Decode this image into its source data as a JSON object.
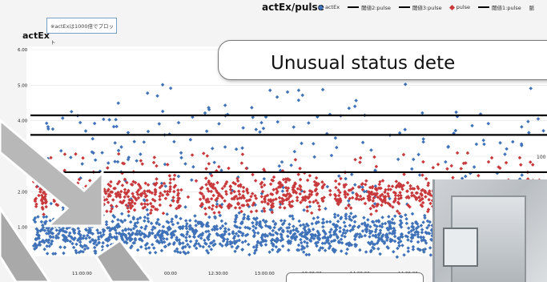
{
  "chart_data": {
    "type": "scatter",
    "title": "actEx/pulse",
    "ylabel": "actEx",
    "xlabel": "",
    "ylim": [
      0,
      6
    ],
    "y_ticks": [
      "6.00",
      "5.00",
      "4.00",
      "3.00",
      "2.00",
      "1.00"
    ],
    "x_ticks": [
      "11:00:00",
      "11:",
      "00:00",
      "12:30:00",
      "13:00:00",
      "13:30:00",
      "14:00:00",
      "14:30:00"
    ],
    "note": "※actExは1000倍でプロット",
    "legend": [
      {
        "label": "actEx",
        "kind": "diamond",
        "color": "#3f72b8"
      },
      {
        "label": "閾値2:pulse",
        "kind": "line",
        "color": "#000000"
      },
      {
        "label": "閾値3:pulse",
        "kind": "line",
        "color": "#000000"
      },
      {
        "label": "pulse",
        "kind": "diamond",
        "color": "#c8393c"
      },
      {
        "label": "閾値1:pulse",
        "kind": "line",
        "color": "#000000"
      },
      {
        "label": "脈",
        "kind": "text",
        "color": "#333333"
      }
    ],
    "threshold_lines": [
      4.15,
      3.6,
      2.55
    ],
    "series": [
      {
        "name": "actEx",
        "color": "#3f72b8",
        "band_low": 0.15,
        "band_high": 1.45,
        "outlier_max": 5.2
      },
      {
        "name": "pulse",
        "color": "#c8393c",
        "band_low": 1.35,
        "band_high": 2.45,
        "outlier_max": 3.1
      }
    ],
    "right_axis_tick": "100"
  },
  "callout": {
    "text": "Unusual status dete"
  }
}
